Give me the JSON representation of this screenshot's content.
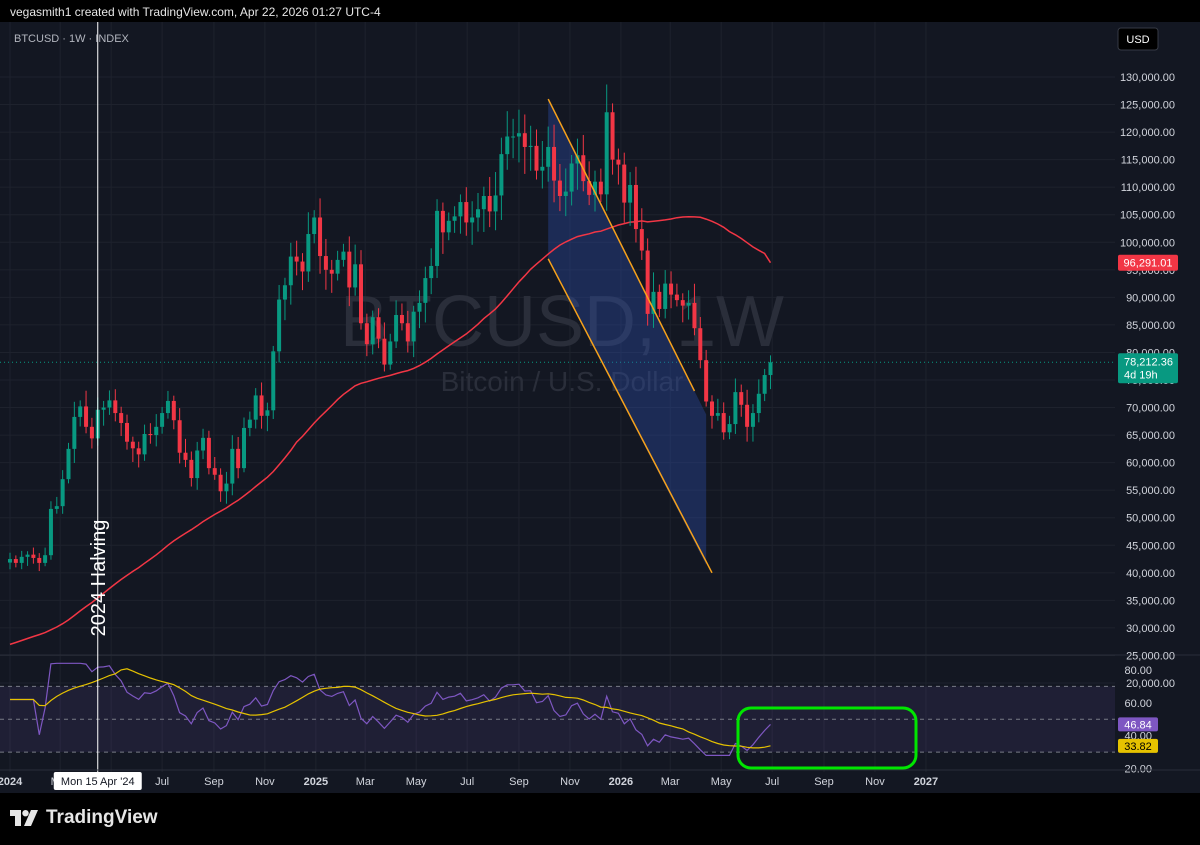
{
  "header": {
    "caption": "vegasmith1 created with TradingView.com, Apr 22, 2026 01:27 UTC-4"
  },
  "symbol_info": "BTCUSD · 1W · INDEX",
  "currency_button": "USD",
  "watermark": {
    "symbol": "BTCUSD, 1W",
    "description": "Bitcoin / U.S. Dollar"
  },
  "annotations": {
    "halving_label": "2024 Halving",
    "crosshair_date": "Mon 15 Apr '24"
  },
  "price_labels": {
    "ma": {
      "value": "96,291.01",
      "color": "#f23645"
    },
    "last": {
      "value": "78,212.36",
      "countdown": "4d 19h",
      "color": "#089981"
    }
  },
  "rsi_labels": {
    "rsi": "46.84",
    "ma": "33.82"
  },
  "branding": {
    "logo_text": "TradingView"
  },
  "colors": {
    "up": "#089981",
    "down": "#f23645",
    "ma_line": "#f23645",
    "channel": "#f7a21b",
    "rsi_line": "#7e57c2",
    "rsi_ma": "#e6c200",
    "highlight": "#00e600"
  },
  "chart_data": [
    {
      "type": "candlestick",
      "title": "BTCUSD · 1W · INDEX",
      "y_axis_ticks": [
        20000,
        25000,
        30000,
        35000,
        40000,
        45000,
        50000,
        55000,
        60000,
        65000,
        70000,
        75000,
        80000,
        85000,
        90000,
        95000,
        100000,
        105000,
        110000,
        115000,
        120000,
        125000,
        130000
      ],
      "y_axis_tick_labels": [
        "20,000.00",
        "25,000.00",
        "30,000.00",
        "35,000.00",
        "40,000.00",
        "45,000.00",
        "50,000.00",
        "55,000.00",
        "60,000.00",
        "65,000.00",
        "70,000.00",
        "75,000.00",
        "80,000.00",
        "85,000.00",
        "90,000.00",
        "95,000.00",
        "100,000.00",
        "105,000.00",
        "110,000.00",
        "115,000.00",
        "120,000.00",
        "125,000.00",
        "130,000.00"
      ],
      "x_axis_labels": [
        "2024",
        "Mar",
        "May",
        "Jul",
        "Sep",
        "Nov",
        "2025",
        "Mar",
        "May",
        "Jul",
        "Sep",
        "Nov",
        "2026",
        "Mar",
        "May",
        "Jul",
        "Sep",
        "Nov",
        "2027"
      ],
      "x_axis_bold": [
        "2024",
        "2025",
        "2026",
        "2027"
      ],
      "ylim": [
        17000,
        133000
      ],
      "x_start": "2024-01-01",
      "weekly_close": [
        42500,
        41800,
        42900,
        43300,
        42700,
        41800,
        43200,
        51600,
        52100,
        57000,
        62500,
        68300,
        70200,
        66500,
        64400,
        69600,
        70000,
        71300,
        69000,
        67200,
        63800,
        62600,
        61500,
        65200,
        65000,
        66500,
        69000,
        71200,
        67700,
        61800,
        60500,
        57200,
        62200,
        64500,
        59000,
        57800,
        54800,
        56200,
        62500,
        59000,
        66300,
        67800,
        72200,
        68500,
        69500,
        80200,
        89600,
        92200,
        97400,
        96500,
        94700,
        101500,
        104500,
        97500,
        95000,
        94300,
        96800,
        98300,
        91800,
        96000,
        85300,
        81500,
        86400,
        82500,
        77800,
        82000,
        86800,
        85300,
        82000,
        87400,
        89000,
        93500,
        95700,
        105700,
        101800,
        103900,
        104700,
        107300,
        103600,
        104500,
        106000,
        108400,
        105600,
        108500,
        116000,
        119200,
        119200,
        119800,
        117300,
        117500,
        113000,
        113700,
        117300,
        111200,
        108400,
        109200,
        114300,
        115800,
        111100,
        108600,
        111000,
        108700,
        123600,
        115000,
        114100,
        107200,
        110400,
        102400,
        98500,
        87000,
        91000,
        87900,
        92500,
        90500,
        89500,
        88500,
        89000,
        84400,
        78600,
        71100,
        68500,
        69000,
        65500,
        67000,
        72800,
        70500,
        66500,
        69000,
        72500,
        75900,
        78212
      ],
      "moving_average": {
        "label": "96,291.01",
        "last_value": 96291.01
      },
      "channel": {
        "upper": [
          [
            "2025-10-06",
            126000
          ],
          [
            "2026-03-30",
            73000
          ]
        ],
        "lower": [
          [
            "2025-10-06",
            97000
          ],
          [
            "2026-04-20",
            40000
          ]
        ]
      },
      "last_price": 78212.36,
      "countdown": "4d 19h"
    },
    {
      "type": "line",
      "title": "RSI",
      "y_axis_tick_labels": [
        "20.00",
        "40.00",
        "60.00",
        "80.00"
      ],
      "y_axis_ticks": [
        20,
        40,
        60,
        80
      ],
      "band": [
        30,
        70
      ],
      "ylim": [
        24,
        86
      ],
      "rsi_last": 46.84,
      "rsi_ma_last": 33.82
    }
  ]
}
